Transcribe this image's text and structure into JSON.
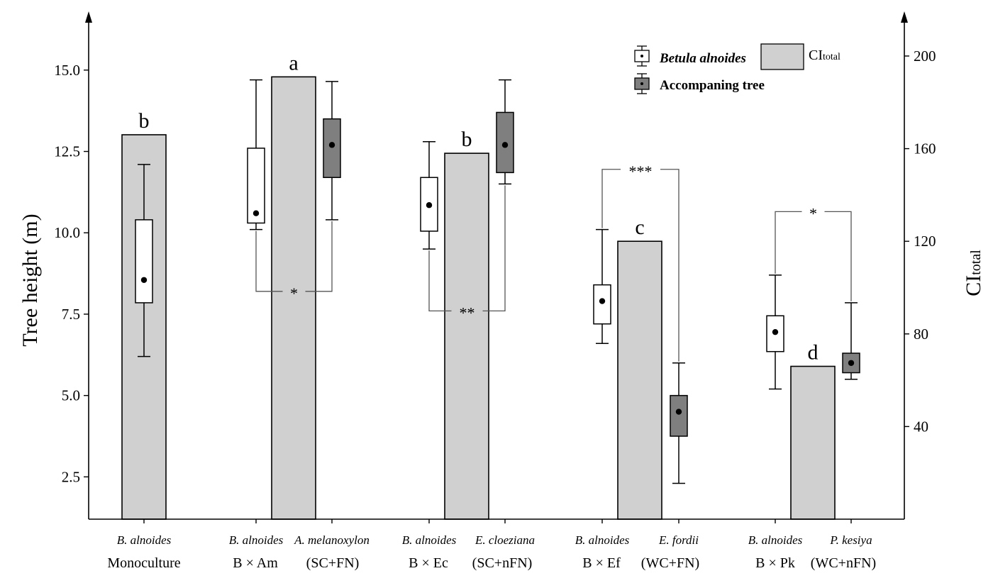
{
  "chart_data": {
    "type": "bar+box",
    "left_axis": {
      "label": "Tree height (m)",
      "range": [
        1.2,
        16.5
      ],
      "ticks": [
        "2.5",
        "5.0",
        "7.5",
        "10.0",
        "12.5",
        "15.0"
      ],
      "tick_values": [
        2.5,
        5.0,
        7.5,
        10.0,
        12.5,
        15.0
      ]
    },
    "right_axis": {
      "label_main": "CI",
      "label_sub": "total",
      "range": [
        0,
        215
      ],
      "ticks": [
        "40",
        "80",
        "120",
        "160",
        "200"
      ],
      "tick_values": [
        40,
        80,
        120,
        160,
        200
      ]
    },
    "legend": {
      "position": "top-right",
      "betula": "Betula alnoides",
      "accompanying": "Accompaning tree",
      "ci_main": "CI",
      "ci_sub": "total",
      "colors": {
        "betula": "#ffffff",
        "accompanying": "#7f7f7f",
        "ci_bar": "#d0d0d0"
      }
    },
    "groups": [
      {
        "group_label": "Monoculture",
        "treatment": "",
        "ci_total": 166,
        "letter": "b",
        "boxes": [
          {
            "species": "B. alnoides",
            "kind": "betula",
            "whisker_low": 6.2,
            "q1": 7.85,
            "q3": 10.4,
            "whisker_high": 12.1,
            "mean": 8.55
          }
        ],
        "significance": null
      },
      {
        "group_label": "B × Am",
        "treatment": "(SC+FN)",
        "ci_total": 191,
        "letter": "a",
        "boxes": [
          {
            "species": "B. alnoides",
            "kind": "betula",
            "whisker_low": 10.1,
            "q1": 10.3,
            "q3": 12.6,
            "whisker_high": 14.7,
            "mean": 10.6
          },
          {
            "species": "A. melanoxylon",
            "kind": "accompanying",
            "whisker_low": 10.4,
            "q1": 11.7,
            "q3": 13.5,
            "whisker_high": 14.65,
            "mean": 12.7
          }
        ],
        "significance": {
          "label": "*",
          "position": "below",
          "y": 8.2
        }
      },
      {
        "group_label": "B × Ec",
        "treatment": "(SC+nFN)",
        "ci_total": 158,
        "letter": "b",
        "boxes": [
          {
            "species": "B. alnoides",
            "kind": "betula",
            "whisker_low": 9.5,
            "q1": 10.05,
            "q3": 11.7,
            "whisker_high": 12.8,
            "mean": 10.85
          },
          {
            "species": "E. cloeziana",
            "kind": "accompanying",
            "whisker_low": 11.5,
            "q1": 11.85,
            "q3": 13.7,
            "whisker_high": 14.7,
            "mean": 12.7
          }
        ],
        "significance": {
          "label": "**",
          "position": "below",
          "y": 7.6
        }
      },
      {
        "group_label": "B × Ef",
        "treatment": "(WC+FN)",
        "ci_total": 120,
        "letter": "c",
        "boxes": [
          {
            "species": "B. alnoides",
            "kind": "betula",
            "whisker_low": 6.6,
            "q1": 7.2,
            "q3": 8.4,
            "whisker_high": 10.1,
            "mean": 7.9
          },
          {
            "species": "E. fordii",
            "kind": "accompanying",
            "whisker_low": 2.3,
            "q1": 3.75,
            "q3": 5.0,
            "whisker_high": 6.0,
            "mean": 4.5
          }
        ],
        "significance": {
          "label": "***",
          "position": "above",
          "y": 11.95
        }
      },
      {
        "group_label": "B × Pk",
        "treatment": "(WC+nFN)",
        "ci_total": 66,
        "letter": "d",
        "boxes": [
          {
            "species": "B. alnoides",
            "kind": "betula",
            "whisker_low": 5.2,
            "q1": 6.35,
            "q3": 7.45,
            "whisker_high": 8.7,
            "mean": 6.95
          },
          {
            "species": "P. kesiya",
            "kind": "accompanying",
            "whisker_low": 5.5,
            "q1": 5.7,
            "q3": 6.3,
            "whisker_high": 7.85,
            "mean": 6.0
          }
        ],
        "significance": {
          "label": "*",
          "position": "above",
          "y": 10.65
        }
      }
    ]
  }
}
